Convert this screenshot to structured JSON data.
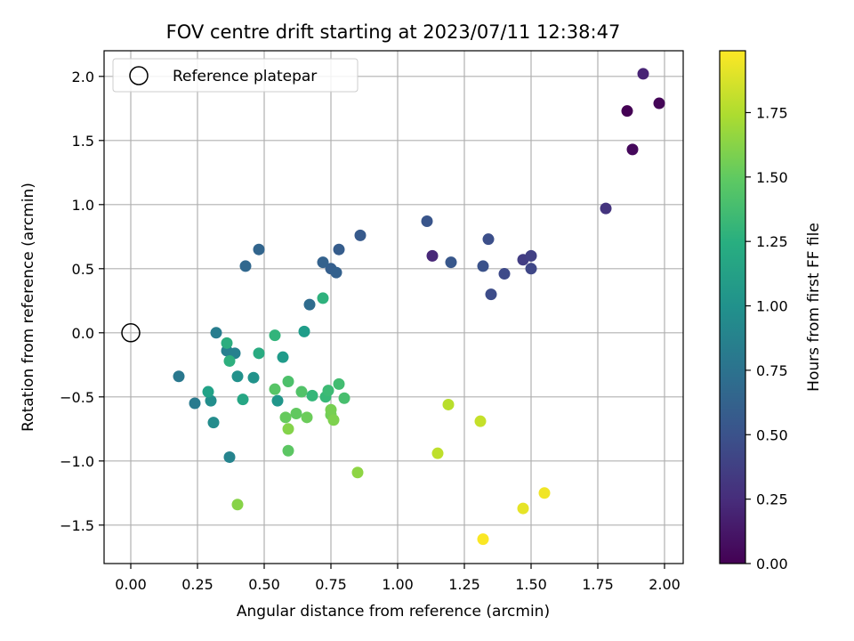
{
  "chart_data": {
    "type": "scatter",
    "title": "FOV centre drift starting at 2023/07/11 12:38:47",
    "xlabel": "Angular distance from reference (arcmin)",
    "ylabel": "Rotation from reference (arcmin)",
    "xlim": [
      -0.1,
      2.07
    ],
    "ylim": [
      -1.8,
      2.2
    ],
    "x_ticks": [
      0.0,
      0.25,
      0.5,
      0.75,
      1.0,
      1.25,
      1.5,
      1.75,
      2.0
    ],
    "x_tick_labels": [
      "0.00",
      "0.25",
      "0.50",
      "0.75",
      "1.00",
      "1.25",
      "1.50",
      "1.75",
      "2.00"
    ],
    "y_ticks": [
      -1.5,
      -1.0,
      -0.5,
      0.0,
      0.5,
      1.0,
      1.5,
      2.0
    ],
    "y_tick_labels": [
      "−1.5",
      "−1.0",
      "−0.5",
      "0.0",
      "0.5",
      "1.0",
      "1.5",
      "2.0"
    ],
    "grid": true,
    "legend": {
      "placement": "upper-left",
      "entries": [
        "Reference platepar"
      ]
    },
    "reference_point": {
      "x": 0.0,
      "y": 0.0
    },
    "colorbar": {
      "label": "Hours from first FF file",
      "range": [
        0.0,
        1.99
      ],
      "ticks": [
        0.0,
        0.25,
        0.5,
        0.75,
        1.0,
        1.25,
        1.5,
        1.75
      ],
      "tick_labels": [
        "0.00",
        "0.25",
        "0.50",
        "0.75",
        "1.00",
        "1.25",
        "1.50",
        "1.75"
      ],
      "colormap": "viridis"
    },
    "points": [
      {
        "x": 1.86,
        "y": 1.73,
        "c": 0.0
      },
      {
        "x": 1.98,
        "y": 1.79,
        "c": 0.02
      },
      {
        "x": 1.88,
        "y": 1.43,
        "c": 0.04
      },
      {
        "x": 1.92,
        "y": 2.02,
        "c": 0.2
      },
      {
        "x": 1.13,
        "y": 0.6,
        "c": 0.22
      },
      {
        "x": 1.78,
        "y": 0.97,
        "c": 0.3
      },
      {
        "x": 1.47,
        "y": 0.57,
        "c": 0.36
      },
      {
        "x": 1.5,
        "y": 0.6,
        "c": 0.38
      },
      {
        "x": 1.5,
        "y": 0.5,
        "c": 0.42
      },
      {
        "x": 1.4,
        "y": 0.46,
        "c": 0.44
      },
      {
        "x": 1.35,
        "y": 0.3,
        "c": 0.46
      },
      {
        "x": 1.34,
        "y": 0.73,
        "c": 0.48
      },
      {
        "x": 1.32,
        "y": 0.52,
        "c": 0.5
      },
      {
        "x": 1.11,
        "y": 0.87,
        "c": 0.52
      },
      {
        "x": 1.2,
        "y": 0.55,
        "c": 0.54
      },
      {
        "x": 0.86,
        "y": 0.76,
        "c": 0.56
      },
      {
        "x": 0.78,
        "y": 0.65,
        "c": 0.58
      },
      {
        "x": 0.75,
        "y": 0.5,
        "c": 0.6
      },
      {
        "x": 0.77,
        "y": 0.47,
        "c": 0.61
      },
      {
        "x": 0.72,
        "y": 0.55,
        "c": 0.62
      },
      {
        "x": 0.48,
        "y": 0.65,
        "c": 0.64
      },
      {
        "x": 0.43,
        "y": 0.52,
        "c": 0.66
      },
      {
        "x": 0.67,
        "y": 0.22,
        "c": 0.7
      },
      {
        "x": 0.18,
        "y": -0.34,
        "c": 0.8
      },
      {
        "x": 0.24,
        "y": -0.55,
        "c": 0.82
      },
      {
        "x": 0.32,
        "y": 0.0,
        "c": 0.84
      },
      {
        "x": 0.36,
        "y": -0.14,
        "c": 0.86
      },
      {
        "x": 0.39,
        "y": -0.16,
        "c": 0.88
      },
      {
        "x": 0.37,
        "y": -0.97,
        "c": 0.9
      },
      {
        "x": 0.31,
        "y": -0.7,
        "c": 0.96
      },
      {
        "x": 0.3,
        "y": -0.53,
        "c": 0.98
      },
      {
        "x": 0.4,
        "y": -0.34,
        "c": 1.0
      },
      {
        "x": 0.46,
        "y": -0.35,
        "c": 1.02
      },
      {
        "x": 0.55,
        "y": -0.53,
        "c": 1.04
      },
      {
        "x": 0.57,
        "y": -0.19,
        "c": 1.08
      },
      {
        "x": 0.65,
        "y": 0.01,
        "c": 1.1
      },
      {
        "x": 0.29,
        "y": -0.46,
        "c": 1.14
      },
      {
        "x": 0.42,
        "y": -0.52,
        "c": 1.18
      },
      {
        "x": 0.48,
        "y": -0.16,
        "c": 1.22
      },
      {
        "x": 0.36,
        "y": -0.08,
        "c": 1.24
      },
      {
        "x": 0.37,
        "y": -0.22,
        "c": 1.26
      },
      {
        "x": 0.72,
        "y": 0.27,
        "c": 1.27
      },
      {
        "x": 0.54,
        "y": -0.02,
        "c": 1.3
      },
      {
        "x": 0.68,
        "y": -0.49,
        "c": 1.32
      },
      {
        "x": 0.73,
        "y": -0.5,
        "c": 1.34
      },
      {
        "x": 0.74,
        "y": -0.45,
        "c": 1.36
      },
      {
        "x": 0.78,
        "y": -0.4,
        "c": 1.38
      },
      {
        "x": 0.8,
        "y": -0.51,
        "c": 1.4
      },
      {
        "x": 0.59,
        "y": -0.38,
        "c": 1.42
      },
      {
        "x": 0.64,
        "y": -0.46,
        "c": 1.44
      },
      {
        "x": 0.54,
        "y": -0.44,
        "c": 1.46
      },
      {
        "x": 0.59,
        "y": -0.92,
        "c": 1.48
      },
      {
        "x": 0.62,
        "y": -0.63,
        "c": 1.5
      },
      {
        "x": 0.58,
        "y": -0.66,
        "c": 1.52
      },
      {
        "x": 0.66,
        "y": -0.66,
        "c": 1.54
      },
      {
        "x": 0.75,
        "y": -0.64,
        "c": 1.56
      },
      {
        "x": 0.75,
        "y": -0.6,
        "c": 1.58
      },
      {
        "x": 0.76,
        "y": -0.68,
        "c": 1.6
      },
      {
        "x": 0.59,
        "y": -0.75,
        "c": 1.62
      },
      {
        "x": 0.4,
        "y": -1.34,
        "c": 1.63
      },
      {
        "x": 0.85,
        "y": -1.09,
        "c": 1.65
      },
      {
        "x": 1.19,
        "y": -0.56,
        "c": 1.78
      },
      {
        "x": 1.15,
        "y": -0.94,
        "c": 1.8
      },
      {
        "x": 1.31,
        "y": -0.69,
        "c": 1.82
      },
      {
        "x": 1.47,
        "y": -1.37,
        "c": 1.92
      },
      {
        "x": 1.55,
        "y": -1.25,
        "c": 1.95
      },
      {
        "x": 1.32,
        "y": -1.61,
        "c": 1.98
      }
    ]
  }
}
